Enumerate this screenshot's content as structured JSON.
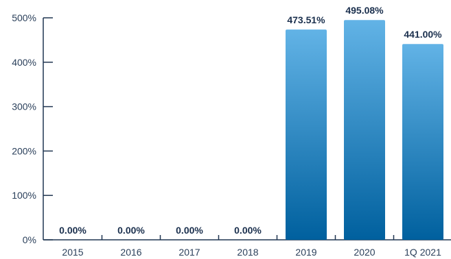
{
  "chart_data": {
    "type": "bar",
    "title": "",
    "xlabel": "",
    "ylabel": "",
    "categories": [
      "2015",
      "2016",
      "2017",
      "2018",
      "2019",
      "2020",
      "1Q 2021"
    ],
    "values": [
      0,
      0,
      0,
      0,
      473.51,
      495.08,
      441.0
    ],
    "value_labels": [
      "0.00%",
      "0.00%",
      "0.00%",
      "0.00%",
      "473.51%",
      "495.08%",
      "441.00%"
    ],
    "ylim": [
      0,
      500
    ],
    "y_ticks": [
      0,
      100,
      200,
      300,
      400,
      500
    ],
    "y_tick_labels": [
      "0%",
      "100%",
      "200%",
      "300%",
      "400%",
      "500%"
    ],
    "grid": false,
    "legend": "none",
    "colors": {
      "bar_top": "#62b3e6",
      "bar_bottom": "#00609e",
      "axis": "#1f3550",
      "text": "#2a3f5a"
    }
  }
}
